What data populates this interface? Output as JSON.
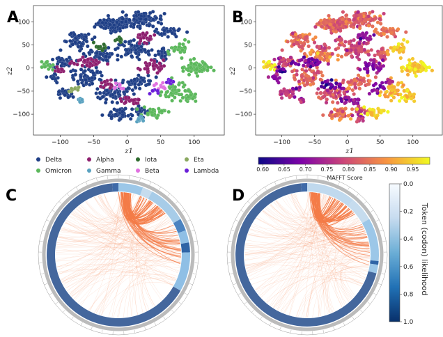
{
  "panels": {
    "a": "A",
    "b": "B",
    "c": "C",
    "d": "D"
  },
  "chart_data": [
    {
      "type": "scatter",
      "panel": "A",
      "xlabel": "z1",
      "ylabel": "z2",
      "xticks": [
        -100,
        -50,
        0,
        50,
        100
      ],
      "yticks": [
        100,
        50,
        0,
        -50,
        -100
      ],
      "xlim": [
        -140,
        145
      ],
      "ylim": [
        -145,
        135
      ],
      "legend": {
        "placement": "bottom",
        "entries": [
          {
            "name": "Delta",
            "color": "#1f3f86"
          },
          {
            "name": "Omicron",
            "color": "#5cb85c"
          },
          {
            "name": "Alpha",
            "color": "#8e1f6e"
          },
          {
            "name": "Gamma",
            "color": "#5aa2c0"
          },
          {
            "name": "Iota",
            "color": "#2e6b2e"
          },
          {
            "name": "Beta",
            "color": "#e070e0"
          },
          {
            "name": "Eta",
            "color": "#8aa860"
          },
          {
            "name": "Lambda",
            "color": "#6a1fd8"
          }
        ]
      }
    },
    {
      "type": "scatter",
      "panel": "B",
      "xlabel": "z1",
      "ylabel": "z2",
      "xticks": [
        -100,
        -50,
        0,
        50,
        100
      ],
      "yticks": [
        100,
        50,
        0,
        -50,
        -100
      ],
      "xlim": [
        -140,
        145
      ],
      "ylim": [
        -145,
        135
      ],
      "colorbar": {
        "label": "MAFFT Score",
        "ticks": [
          "0.60",
          "0.65",
          "0.70",
          "0.75",
          "0.80",
          "0.85",
          "0.90",
          "0.95"
        ],
        "range": [
          0.59,
          0.99
        ],
        "colormap": "plasma"
      }
    },
    {
      "type": "chord",
      "panels": [
        "C",
        "D"
      ],
      "colorbar": {
        "label": "Token (codon) likelihood",
        "ticks": [
          "0.0",
          "0.2",
          "0.4",
          "0.6",
          "0.8",
          "1.0"
        ],
        "range": [
          0.0,
          1.0
        ],
        "colormap": "Blues"
      }
    }
  ]
}
